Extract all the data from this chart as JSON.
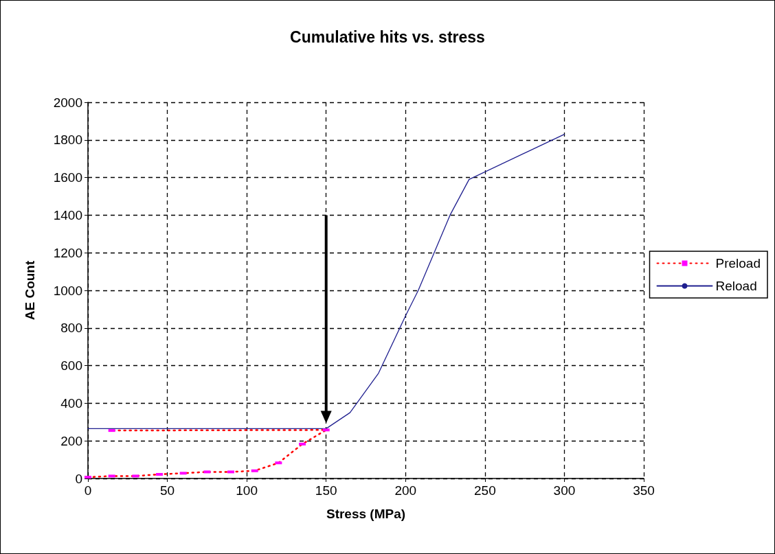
{
  "chart_data": {
    "type": "line",
    "title": "Cumulative hits vs. stress",
    "xlabel": "Stress (MPa)",
    "ylabel": "AE Count",
    "xlim": [
      0,
      350
    ],
    "xticks": [
      0,
      50,
      100,
      150,
      200,
      250,
      300,
      350
    ],
    "ylim": [
      0,
      2000
    ],
    "yticks": [
      0,
      200,
      400,
      600,
      800,
      1000,
      1200,
      1400,
      1600,
      1800,
      2000
    ],
    "grid": true,
    "legend": "right",
    "series": [
      {
        "name": "Preload",
        "color": "#ff0000",
        "line_style": "dotted",
        "marker": "square",
        "x": [
          0,
          15,
          30,
          45,
          60,
          75,
          90,
          105,
          120,
          135,
          150,
          15
        ],
        "values": [
          7,
          13,
          13,
          22,
          28,
          35,
          35,
          41,
          83,
          183,
          258,
          255
        ]
      },
      {
        "name": "Reload",
        "color": "#1f1f8f",
        "line_style": "solid",
        "marker": "none",
        "x": [
          0,
          150,
          165,
          183,
          200,
          208,
          218,
          228,
          240,
          300
        ],
        "values": [
          265,
          265,
          350,
          560,
          865,
          1000,
          1200,
          1400,
          1590,
          1830
        ]
      }
    ]
  }
}
